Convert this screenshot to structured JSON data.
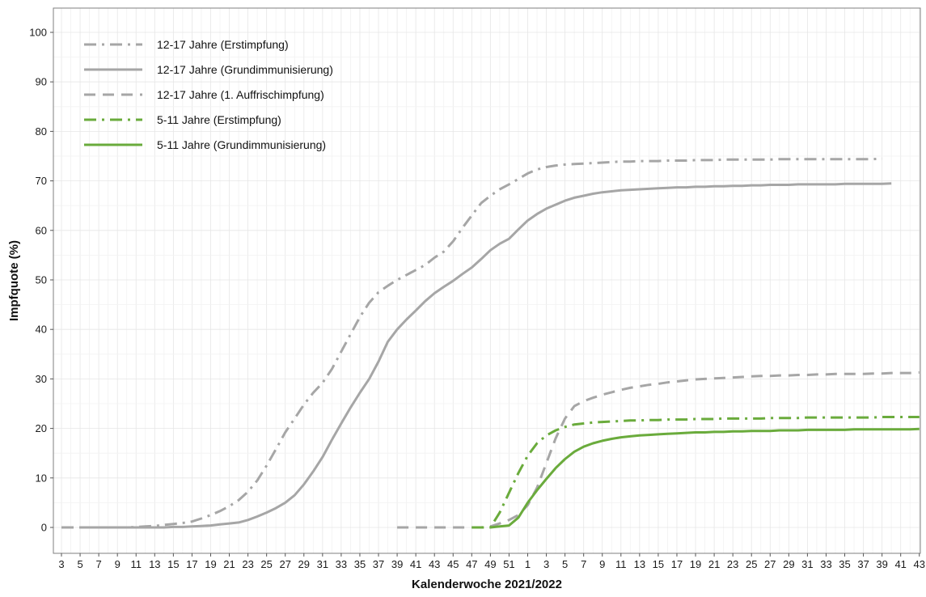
{
  "chart_data": {
    "type": "line",
    "xlabel": "Kalenderwoche 2021/2022",
    "ylabel": "Impfquote (%)",
    "ylim": [
      0,
      100
    ],
    "yticks": [
      0,
      10,
      20,
      30,
      40,
      50,
      60,
      70,
      80,
      90,
      100
    ],
    "x_weeks": [
      "3",
      "4",
      "5",
      "6",
      "7",
      "8",
      "9",
      "10",
      "11",
      "12",
      "13",
      "14",
      "15",
      "16",
      "17",
      "18",
      "19",
      "20",
      "21",
      "22",
      "23",
      "24",
      "25",
      "26",
      "27",
      "28",
      "29",
      "30",
      "31",
      "32",
      "33",
      "34",
      "35",
      "36",
      "37",
      "38",
      "39",
      "40",
      "41",
      "42",
      "43",
      "44",
      "45",
      "46",
      "47",
      "48",
      "49",
      "50",
      "51",
      "52",
      "1",
      "2",
      "3",
      "4",
      "5",
      "6",
      "7",
      "8",
      "9",
      "10",
      "11",
      "12",
      "13",
      "14",
      "15",
      "16",
      "17",
      "18",
      "19",
      "20",
      "21",
      "22",
      "23",
      "24",
      "25",
      "26",
      "27",
      "28",
      "29",
      "30",
      "31",
      "32",
      "33",
      "34",
      "35",
      "36",
      "37",
      "38",
      "39",
      "40",
      "41",
      "42",
      "43"
    ],
    "x_tick_labels": [
      "3",
      "5",
      "7",
      "9",
      "11",
      "13",
      "15",
      "17",
      "19",
      "21",
      "23",
      "25",
      "27",
      "29",
      "31",
      "33",
      "35",
      "37",
      "39",
      "41",
      "43",
      "45",
      "47",
      "49",
      "51",
      "1",
      "3",
      "5",
      "7",
      "9",
      "11",
      "13",
      "15",
      "17",
      "19",
      "21",
      "23",
      "25",
      "27",
      "29",
      "31",
      "33",
      "35",
      "37",
      "39",
      "41",
      "43"
    ],
    "grid": true,
    "legend_position": "top-left",
    "series": [
      {
        "name": "12-17 Jahre (Erstimpfung)",
        "color": "#a6a6a6",
        "dash": "dashdot",
        "start_index": 0,
        "values": [
          0,
          0,
          0,
          0,
          0,
          0,
          0,
          0,
          0.1,
          0.2,
          0.3,
          0.5,
          0.7,
          0.9,
          1.2,
          1.8,
          2.5,
          3.3,
          4.3,
          5.5,
          7.2,
          9.5,
          12.5,
          15.8,
          19.2,
          22,
          24.8,
          27.2,
          29.2,
          32,
          35.5,
          39,
          42.5,
          45.4,
          47.5,
          48.8,
          50,
          51,
          52,
          53,
          54.5,
          55.7,
          57.8,
          60.5,
          63,
          65.5,
          67,
          68.3,
          69.3,
          70.4,
          71.5,
          72.3,
          72.8,
          73.1,
          73.3,
          73.4,
          73.5,
          73.6,
          73.7,
          73.8,
          73.9,
          73.9,
          74,
          74,
          74,
          74.1,
          74.1,
          74.1,
          74.2,
          74.2,
          74.2,
          74.3,
          74.3,
          74.3,
          74.3,
          74.3,
          74.3,
          74.4,
          74.4,
          74.4,
          74.4,
          74.4,
          74.4,
          74.4,
          74.4,
          74.4,
          74.4,
          74.4,
          74.5
        ]
      },
      {
        "name": "12-17 Jahre (Grundimmunisierung)",
        "color": "#a6a6a6",
        "dash": "solid",
        "start_index": 2,
        "values": [
          0,
          0,
          0,
          0,
          0,
          0,
          0,
          0,
          0,
          0,
          0.1,
          0.1,
          0.2,
          0.3,
          0.4,
          0.6,
          0.8,
          1,
          1.5,
          2.2,
          3,
          3.9,
          5,
          6.5,
          8.7,
          11.3,
          14.2,
          17.7,
          21,
          24.2,
          27.2,
          30,
          33.5,
          37.5,
          40,
          42,
          43.8,
          45.7,
          47.3,
          48.6,
          49.8,
          51.2,
          52.5,
          54.2,
          56,
          57.3,
          58.3,
          60.2,
          62,
          63.3,
          64.4,
          65.2,
          66,
          66.6,
          67,
          67.4,
          67.7,
          67.9,
          68.1,
          68.2,
          68.3,
          68.4,
          68.5,
          68.6,
          68.7,
          68.7,
          68.8,
          68.8,
          68.9,
          68.9,
          69,
          69,
          69.1,
          69.1,
          69.2,
          69.2,
          69.2,
          69.3,
          69.3,
          69.3,
          69.3,
          69.3,
          69.4,
          69.4,
          69.4,
          69.4,
          69.4,
          69.5
        ]
      },
      {
        "name": "12-17 Jahre (1. Auffrischimpfung)",
        "color": "#a6a6a6",
        "dash": "dashed",
        "start_index": 36,
        "values": [
          0,
          0,
          0,
          0,
          0,
          0,
          0,
          0,
          0,
          0,
          0.2,
          0.8,
          1.5,
          2.5,
          4.5,
          8,
          13,
          18,
          22,
          24.5,
          25.5,
          26.2,
          26.8,
          27.3,
          27.8,
          28.2,
          28.5,
          28.8,
          29,
          29.3,
          29.5,
          29.7,
          29.9,
          30,
          30.1,
          30.2,
          30.3,
          30.4,
          30.5,
          30.6,
          30.6,
          30.7,
          30.7,
          30.8,
          30.8,
          30.9,
          30.9,
          31,
          31,
          31,
          31,
          31.1,
          31.1,
          31.2,
          31.2,
          31.2,
          31.3
        ]
      },
      {
        "name": "5-11 Jahre (Erstimpfung)",
        "color": "#6aab3c",
        "dash": "dashdot",
        "start_index": 44,
        "values": [
          0,
          0,
          0,
          3,
          7,
          11,
          14.5,
          17,
          18.6,
          19.6,
          20.3,
          20.8,
          21,
          21.2,
          21.3,
          21.4,
          21.5,
          21.6,
          21.6,
          21.7,
          21.7,
          21.8,
          21.8,
          21.8,
          21.9,
          21.9,
          21.9,
          22,
          22,
          22,
          22,
          22,
          22.1,
          22.1,
          22.1,
          22.1,
          22.2,
          22.2,
          22.2,
          22.2,
          22.2,
          22.2,
          22.2,
          22.2,
          22.3,
          22.3,
          22.3,
          22.3,
          22.3
        ]
      },
      {
        "name": "5-11 Jahre (Grundimmunisierung)",
        "color": "#6aab3c",
        "dash": "solid",
        "start_index": 46,
        "values": [
          0,
          0.2,
          0.4,
          2,
          5,
          7.5,
          9.8,
          12,
          13.8,
          15.3,
          16.3,
          17,
          17.5,
          17.9,
          18.2,
          18.4,
          18.6,
          18.7,
          18.8,
          18.9,
          19,
          19.1,
          19.2,
          19.2,
          19.3,
          19.3,
          19.4,
          19.4,
          19.5,
          19.5,
          19.5,
          19.6,
          19.6,
          19.6,
          19.7,
          19.7,
          19.7,
          19.7,
          19.7,
          19.8,
          19.8,
          19.8,
          19.8,
          19.8,
          19.8,
          19.8,
          19.9
        ]
      }
    ]
  }
}
